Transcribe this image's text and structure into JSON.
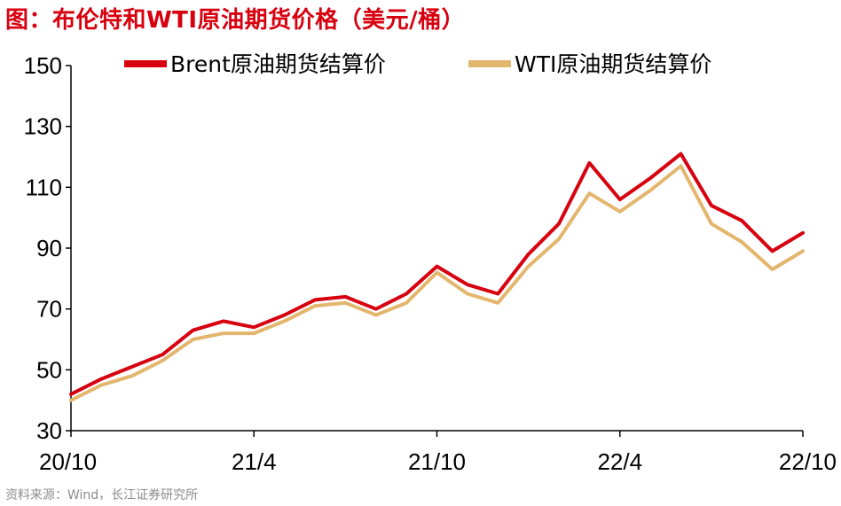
{
  "title": "图：布伦特和WTI原油期货价格（美元/桶）",
  "source": "资料来源：Wind，长江证券研究所",
  "colors": {
    "brent": "#d7000f",
    "wti": "#e3b66e",
    "title": "#d7000f",
    "axis": "#000000"
  },
  "chart_data": {
    "type": "line",
    "title": "图：布伦特和WTI原油期货价格（美元/桶）",
    "xlabel": "",
    "ylabel": "",
    "x_tick_labels": [
      "20/10",
      "21/4",
      "21/10",
      "22/4",
      "22/10"
    ],
    "x_ticks": [
      "2020-10",
      "2021-04",
      "2021-10",
      "2022-04",
      "2022-10"
    ],
    "x_range": [
      "2020-10",
      "2022-10"
    ],
    "ylim": [
      30,
      150
    ],
    "y_ticks": [
      30,
      50,
      70,
      90,
      110,
      130,
      150
    ],
    "grid": false,
    "legend": "top",
    "x": [
      "2020-10",
      "2020-11",
      "2020-12",
      "2021-01",
      "2021-02",
      "2021-03",
      "2021-04",
      "2021-05",
      "2021-06",
      "2021-07",
      "2021-08",
      "2021-09",
      "2021-10",
      "2021-11",
      "2021-12",
      "2022-01",
      "2022-02",
      "2022-03",
      "2022-04",
      "2022-05",
      "2022-06",
      "2022-07",
      "2022-08",
      "2022-09",
      "2022-10"
    ],
    "series": [
      {
        "name": "Brent原油期货结算价",
        "values": [
          42,
          47,
          51,
          55,
          63,
          66,
          64,
          68,
          73,
          74,
          70,
          75,
          84,
          78,
          75,
          88,
          98,
          118,
          106,
          113,
          121,
          104,
          99,
          89,
          95
        ]
      },
      {
        "name": "WTI原油期货结算价",
        "values": [
          40,
          45,
          48,
          53,
          60,
          62,
          62,
          66,
          71,
          72,
          68,
          72,
          82,
          75,
          72,
          84,
          93,
          108,
          102,
          109,
          117,
          98,
          92,
          83,
          89
        ]
      }
    ]
  }
}
